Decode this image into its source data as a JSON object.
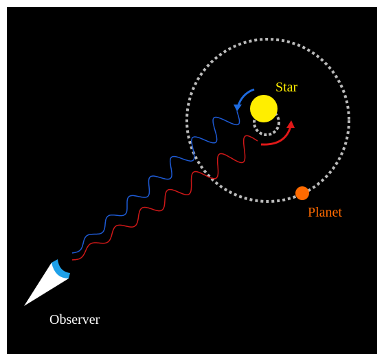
{
  "labels": {
    "star": "Star",
    "planet": "Planet",
    "observer": "Observer"
  }
}
